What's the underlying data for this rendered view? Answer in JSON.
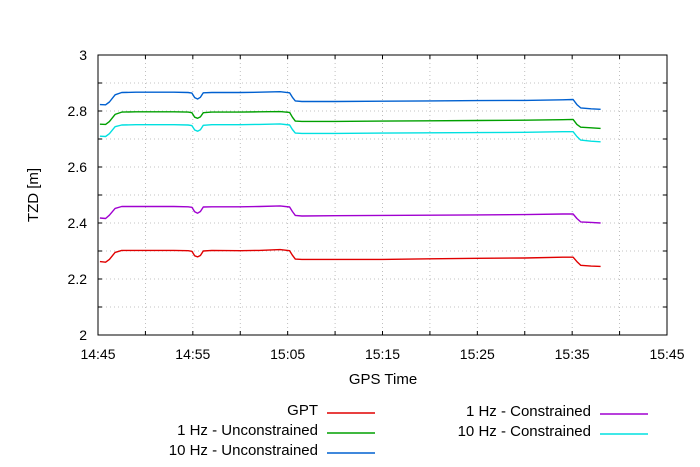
{
  "chart_data": {
    "type": "line",
    "title": "",
    "xlabel": "GPS Time",
    "ylabel": "TZD [m]",
    "x_ticks": [
      "14:45",
      "14:55",
      "15:05",
      "15:15",
      "15:25",
      "15:35",
      "15:45"
    ],
    "y_ticks": [
      "2",
      "2.2",
      "2.4",
      "2.6",
      "2.8",
      "3"
    ],
    "xlim_minutes_of_day": [
      885,
      945
    ],
    "ylim": [
      2,
      3
    ],
    "grid": true,
    "legend_placement": "bottom",
    "series": [
      {
        "name": "GPT",
        "color": "#e00000",
        "points": [
          [
            885.2,
            2.262
          ],
          [
            885.8,
            2.26
          ],
          [
            886.2,
            2.27
          ],
          [
            886.8,
            2.295
          ],
          [
            887.5,
            2.302
          ],
          [
            889,
            2.302
          ],
          [
            891,
            2.302
          ],
          [
            893,
            2.302
          ],
          [
            894.5,
            2.301
          ],
          [
            894.9,
            2.299
          ],
          [
            895.2,
            2.283
          ],
          [
            895.5,
            2.279
          ],
          [
            895.8,
            2.284
          ],
          [
            896.1,
            2.3
          ],
          [
            897,
            2.302
          ],
          [
            900,
            2.301
          ],
          [
            902,
            2.302
          ],
          [
            904.2,
            2.305
          ],
          [
            905.2,
            2.301
          ],
          [
            905.5,
            2.285
          ],
          [
            905.8,
            2.271
          ],
          [
            906.5,
            2.27
          ],
          [
            910,
            2.27
          ],
          [
            915,
            2.27
          ],
          [
            920,
            2.272
          ],
          [
            925,
            2.274
          ],
          [
            930,
            2.275
          ],
          [
            934,
            2.278
          ],
          [
            935.1,
            2.278
          ],
          [
            935.5,
            2.262
          ],
          [
            935.9,
            2.249
          ],
          [
            937,
            2.246
          ],
          [
            938,
            2.245
          ]
        ]
      },
      {
        "name": "1 Hz - Unconstrained",
        "color": "#00a000",
        "points": [
          [
            885.2,
            2.753
          ],
          [
            885.8,
            2.752
          ],
          [
            886.2,
            2.762
          ],
          [
            886.8,
            2.788
          ],
          [
            887.5,
            2.796
          ],
          [
            889,
            2.797
          ],
          [
            891,
            2.797
          ],
          [
            893,
            2.797
          ],
          [
            894.5,
            2.796
          ],
          [
            894.9,
            2.794
          ],
          [
            895.2,
            2.778
          ],
          [
            895.5,
            2.774
          ],
          [
            895.8,
            2.779
          ],
          [
            896.1,
            2.794
          ],
          [
            897,
            2.796
          ],
          [
            900,
            2.796
          ],
          [
            902,
            2.797
          ],
          [
            904.2,
            2.798
          ],
          [
            905.2,
            2.795
          ],
          [
            905.5,
            2.778
          ],
          [
            905.8,
            2.764
          ],
          [
            906.5,
            2.763
          ],
          [
            910,
            2.763
          ],
          [
            915,
            2.764
          ],
          [
            920,
            2.765
          ],
          [
            925,
            2.766
          ],
          [
            930,
            2.767
          ],
          [
            934,
            2.769
          ],
          [
            935.1,
            2.77
          ],
          [
            935.5,
            2.752
          ],
          [
            935.9,
            2.742
          ],
          [
            937,
            2.74
          ],
          [
            938,
            2.738
          ]
        ]
      },
      {
        "name": "10 Hz - Unconstrained",
        "color": "#0060d0",
        "points": [
          [
            885.2,
            2.823
          ],
          [
            885.8,
            2.822
          ],
          [
            886.2,
            2.832
          ],
          [
            886.8,
            2.858
          ],
          [
            887.5,
            2.866
          ],
          [
            889,
            2.867
          ],
          [
            891,
            2.867
          ],
          [
            893,
            2.867
          ],
          [
            894.5,
            2.866
          ],
          [
            894.9,
            2.864
          ],
          [
            895.2,
            2.848
          ],
          [
            895.5,
            2.843
          ],
          [
            895.8,
            2.849
          ],
          [
            896.1,
            2.865
          ],
          [
            897,
            2.866
          ],
          [
            900,
            2.866
          ],
          [
            902,
            2.867
          ],
          [
            904.2,
            2.869
          ],
          [
            905.2,
            2.865
          ],
          [
            905.5,
            2.849
          ],
          [
            905.8,
            2.836
          ],
          [
            906.5,
            2.834
          ],
          [
            910,
            2.834
          ],
          [
            915,
            2.835
          ],
          [
            920,
            2.836
          ],
          [
            925,
            2.837
          ],
          [
            930,
            2.838
          ],
          [
            934,
            2.84
          ],
          [
            935.1,
            2.841
          ],
          [
            935.5,
            2.823
          ],
          [
            935.9,
            2.811
          ],
          [
            937,
            2.808
          ],
          [
            938,
            2.806
          ]
        ]
      },
      {
        "name": "1 Hz - Constrained",
        "color": "#a000d0",
        "points": [
          [
            885.2,
            2.418
          ],
          [
            885.8,
            2.416
          ],
          [
            886.2,
            2.428
          ],
          [
            886.8,
            2.452
          ],
          [
            887.5,
            2.459
          ],
          [
            889,
            2.459
          ],
          [
            891,
            2.459
          ],
          [
            893,
            2.459
          ],
          [
            894.5,
            2.458
          ],
          [
            894.9,
            2.456
          ],
          [
            895.2,
            2.44
          ],
          [
            895.5,
            2.435
          ],
          [
            895.8,
            2.441
          ],
          [
            896.1,
            2.457
          ],
          [
            897,
            2.458
          ],
          [
            900,
            2.458
          ],
          [
            902,
            2.459
          ],
          [
            904.2,
            2.461
          ],
          [
            905.2,
            2.457
          ],
          [
            905.5,
            2.441
          ],
          [
            905.8,
            2.427
          ],
          [
            906.5,
            2.425
          ],
          [
            910,
            2.426
          ],
          [
            915,
            2.427
          ],
          [
            920,
            2.428
          ],
          [
            925,
            2.429
          ],
          [
            930,
            2.43
          ],
          [
            934,
            2.432
          ],
          [
            935.1,
            2.432
          ],
          [
            935.5,
            2.416
          ],
          [
            935.9,
            2.404
          ],
          [
            937,
            2.402
          ],
          [
            938,
            2.4
          ]
        ]
      },
      {
        "name": "10 Hz - Constrained",
        "color": "#00e0e0",
        "points": [
          [
            885.2,
            2.71
          ],
          [
            885.8,
            2.709
          ],
          [
            886.2,
            2.719
          ],
          [
            886.8,
            2.744
          ],
          [
            887.5,
            2.75
          ],
          [
            889,
            2.751
          ],
          [
            891,
            2.751
          ],
          [
            893,
            2.751
          ],
          [
            894.5,
            2.75
          ],
          [
            894.9,
            2.748
          ],
          [
            895.2,
            2.732
          ],
          [
            895.5,
            2.728
          ],
          [
            895.8,
            2.733
          ],
          [
            896.1,
            2.749
          ],
          [
            897,
            2.751
          ],
          [
            900,
            2.751
          ],
          [
            902,
            2.752
          ],
          [
            904.2,
            2.754
          ],
          [
            905.2,
            2.75
          ],
          [
            905.5,
            2.734
          ],
          [
            905.8,
            2.721
          ],
          [
            906.5,
            2.72
          ],
          [
            910,
            2.72
          ],
          [
            915,
            2.721
          ],
          [
            920,
            2.722
          ],
          [
            925,
            2.723
          ],
          [
            930,
            2.724
          ],
          [
            934,
            2.726
          ],
          [
            935.1,
            2.726
          ],
          [
            935.5,
            2.709
          ],
          [
            935.9,
            2.696
          ],
          [
            937,
            2.692
          ],
          [
            938,
            2.69
          ]
        ]
      }
    ]
  }
}
